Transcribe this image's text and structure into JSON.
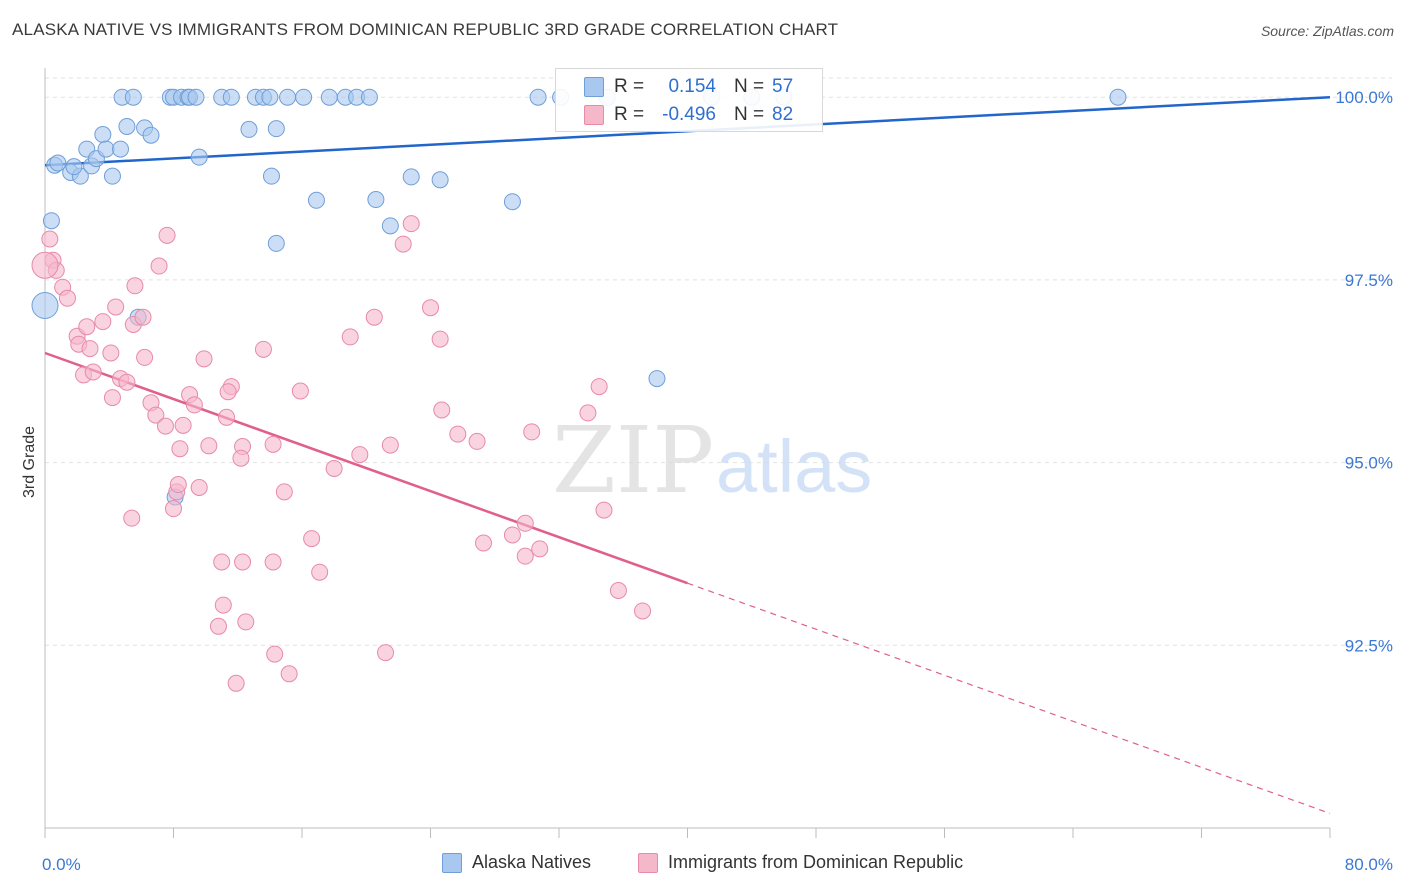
{
  "header": {
    "title": "ALASKA NATIVE VS IMMIGRANTS FROM DOMINICAN REPUBLIC 3RD GRADE CORRELATION CHART",
    "source": "Source: ZipAtlas.com"
  },
  "watermark": {
    "zip": "ZIP",
    "atlas": "atlas"
  },
  "legend": {
    "r_label": "R =",
    "n_label": "N =",
    "series1": {
      "r": "0.154",
      "n": "57"
    },
    "series2": {
      "r": "-0.496",
      "n": "82"
    }
  },
  "colors": {
    "blue_fill": "#a9c8ef",
    "blue_stroke": "#6f9fd8",
    "blue_line": "#2266cc",
    "pink_fill": "#f5b8cb",
    "pink_stroke": "#e88aa8",
    "pink_line": "#e0608a",
    "axis_text": "#3b78d4",
    "grid": "#e2e2e2"
  },
  "chart_data": {
    "type": "scatter",
    "title": "ALASKA NATIVE VS IMMIGRANTS FROM DOMINICAN REPUBLIC 3RD GRADE CORRELATION CHART",
    "xlabel": "",
    "ylabel": "3rd Grade",
    "xlim": [
      0,
      80
    ],
    "ylim": [
      90.0,
      100.4
    ],
    "x_tick_labels": [
      {
        "value": 0,
        "label": "0.0%"
      },
      {
        "value": 80,
        "label": "80.0%"
      }
    ],
    "y_ticks": [
      {
        "value": 100.0,
        "label": "100.0%"
      },
      {
        "value": 97.5,
        "label": "97.5%"
      },
      {
        "value": 95.0,
        "label": "95.0%"
      },
      {
        "value": 92.5,
        "label": "92.5%"
      }
    ],
    "grid": true,
    "legend_placement": "top-center",
    "series": [
      {
        "name": "Alaska Natives",
        "color": "#a9c8ef",
        "trend": {
          "x": [
            0,
            80
          ],
          "y": [
            99.07,
            100.0
          ],
          "dashed_from_x": null
        },
        "points": [
          [
            4.8,
            100.0
          ],
          [
            5.5,
            100.0
          ],
          [
            7.8,
            100.0
          ],
          [
            8.0,
            100.0
          ],
          [
            8.5,
            100.0
          ],
          [
            8.9,
            100.0
          ],
          [
            9.0,
            100.0
          ],
          [
            9.4,
            100.0
          ],
          [
            11.0,
            100.0
          ],
          [
            11.6,
            100.0
          ],
          [
            13.1,
            100.0
          ],
          [
            13.6,
            100.0
          ],
          [
            14.0,
            100.0
          ],
          [
            15.1,
            100.0
          ],
          [
            16.1,
            100.0
          ],
          [
            17.7,
            100.0
          ],
          [
            18.7,
            100.0
          ],
          [
            19.4,
            100.0
          ],
          [
            20.2,
            100.0
          ],
          [
            30.7,
            100.0
          ],
          [
            66.8,
            100.0
          ],
          [
            0.6,
            99.07
          ],
          [
            0.8,
            99.1
          ],
          [
            1.6,
            98.97
          ],
          [
            2.2,
            98.92
          ],
          [
            1.8,
            99.05
          ],
          [
            2.6,
            99.29
          ],
          [
            2.9,
            99.06
          ],
          [
            3.2,
            99.16
          ],
          [
            3.6,
            99.49
          ],
          [
            3.8,
            99.29
          ],
          [
            4.7,
            99.29
          ],
          [
            4.2,
            98.92
          ],
          [
            5.1,
            99.6
          ],
          [
            6.2,
            99.58
          ],
          [
            6.6,
            99.48
          ],
          [
            9.6,
            99.18
          ],
          [
            12.7,
            99.56
          ],
          [
            14.4,
            99.57
          ],
          [
            14.1,
            98.92
          ],
          [
            16.9,
            98.59
          ],
          [
            20.6,
            98.6
          ],
          [
            21.5,
            98.24
          ],
          [
            22.8,
            98.91
          ],
          [
            24.6,
            98.87
          ],
          [
            29.1,
            98.57
          ],
          [
            14.4,
            98.0
          ],
          [
            0.4,
            98.31
          ],
          [
            0.0,
            97.15
          ],
          [
            5.8,
            96.99
          ],
          [
            8.1,
            94.53
          ],
          [
            38.1,
            96.15
          ],
          [
            32.1,
            100.0
          ],
          [
            35.0,
            100.0
          ],
          [
            41.5,
            100.0
          ],
          [
            44.0,
            100.0
          ],
          [
            46.0,
            100.0
          ]
        ]
      },
      {
        "name": "Immigrants from Dominican Republic",
        "color": "#f5b8cb",
        "trend": {
          "x": [
            0,
            80
          ],
          "y": [
            96.5,
            90.2
          ],
          "dashed_from_x": 40.0
        },
        "points": [
          [
            0.3,
            98.06
          ],
          [
            0.5,
            97.77
          ],
          [
            0.7,
            97.63
          ],
          [
            0.0,
            97.7
          ],
          [
            1.1,
            97.4
          ],
          [
            1.4,
            97.25
          ],
          [
            2.0,
            96.73
          ],
          [
            2.6,
            96.86
          ],
          [
            2.1,
            96.62
          ],
          [
            2.8,
            96.56
          ],
          [
            2.4,
            96.2
          ],
          [
            3.0,
            96.24
          ],
          [
            3.6,
            96.93
          ],
          [
            4.1,
            96.5
          ],
          [
            4.4,
            97.13
          ],
          [
            4.2,
            95.89
          ],
          [
            4.7,
            96.15
          ],
          [
            5.1,
            96.1
          ],
          [
            5.5,
            96.89
          ],
          [
            5.6,
            97.42
          ],
          [
            6.1,
            96.99
          ],
          [
            6.2,
            96.44
          ],
          [
            6.6,
            95.82
          ],
          [
            6.9,
            95.65
          ],
          [
            7.1,
            97.69
          ],
          [
            7.5,
            95.5
          ],
          [
            7.6,
            98.11
          ],
          [
            8.2,
            94.6
          ],
          [
            8.6,
            95.51
          ],
          [
            8.4,
            95.19
          ],
          [
            8.0,
            94.37
          ],
          [
            8.3,
            94.7
          ],
          [
            9.0,
            95.93
          ],
          [
            9.3,
            95.79
          ],
          [
            9.6,
            94.66
          ],
          [
            9.9,
            96.42
          ],
          [
            10.2,
            95.23
          ],
          [
            11.6,
            96.04
          ],
          [
            11.3,
            95.62
          ],
          [
            12.3,
            95.22
          ],
          [
            11.4,
            95.97
          ],
          [
            12.2,
            95.06
          ],
          [
            13.6,
            96.55
          ],
          [
            14.2,
            95.25
          ],
          [
            14.9,
            94.6
          ],
          [
            15.9,
            95.98
          ],
          [
            16.6,
            93.96
          ],
          [
            17.1,
            93.5
          ],
          [
            18.0,
            94.92
          ],
          [
            19.0,
            96.72
          ],
          [
            19.6,
            95.11
          ],
          [
            20.5,
            96.99
          ],
          [
            21.5,
            95.24
          ],
          [
            22.3,
            97.99
          ],
          [
            22.8,
            98.27
          ],
          [
            24.7,
            95.72
          ],
          [
            25.7,
            95.39
          ],
          [
            26.9,
            95.29
          ],
          [
            27.3,
            93.9
          ],
          [
            29.1,
            94.01
          ],
          [
            29.9,
            93.72
          ],
          [
            30.3,
            95.42
          ],
          [
            29.9,
            94.17
          ],
          [
            30.8,
            93.82
          ],
          [
            33.8,
            95.68
          ],
          [
            34.5,
            96.04
          ],
          [
            34.8,
            94.35
          ],
          [
            35.7,
            93.25
          ],
          [
            37.2,
            92.97
          ],
          [
            10.8,
            92.76
          ],
          [
            11.1,
            93.05
          ],
          [
            12.3,
            93.64
          ],
          [
            11.0,
            93.64
          ],
          [
            12.5,
            92.82
          ],
          [
            14.2,
            93.64
          ],
          [
            11.9,
            91.98
          ],
          [
            14.3,
            92.38
          ],
          [
            15.2,
            92.11
          ],
          [
            21.2,
            92.4
          ],
          [
            24.0,
            97.12
          ],
          [
            24.6,
            96.69
          ],
          [
            5.4,
            94.24
          ]
        ]
      }
    ]
  },
  "bottom_legend": {
    "item1": "Alaska Natives",
    "item2": "Immigrants from Dominican Republic"
  }
}
